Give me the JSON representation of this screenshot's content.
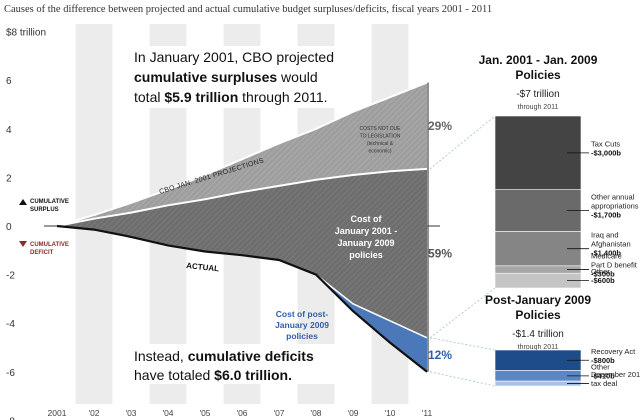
{
  "chart_data": {
    "type": "area",
    "title": "Causes of the difference between projected and actual cumulative budget surpluses/deficits, fiscal years 2001 - 2011",
    "x": [
      "2001",
      "'02",
      "'03",
      "'04",
      "'05",
      "'06",
      "'07",
      "'08",
      "'09",
      "'10",
      "'11"
    ],
    "y_ticks": [
      "$8 trillion",
      "6",
      "4",
      "2",
      "0",
      "-2",
      "-4",
      "-6",
      "-8"
    ],
    "ylim": [
      -8,
      8
    ],
    "series": [
      {
        "name": "CBO JAN. 2001 PROJECTIONS",
        "values": [
          0,
          0.45,
          0.95,
          1.5,
          2.1,
          2.75,
          3.4,
          4.0,
          4.7,
          5.3,
          5.9
        ]
      },
      {
        "name": "Cost of January 2001 - January 2009 policies",
        "values": [
          0,
          0.3,
          0.55,
          0.85,
          1.1,
          1.4,
          1.65,
          1.9,
          2.1,
          2.25,
          2.35
        ]
      },
      {
        "name": "Cost of post-January 2009 policies",
        "values": [
          null,
          null,
          null,
          null,
          null,
          null,
          null,
          -2.0,
          -3.2,
          -3.9,
          -4.6
        ]
      },
      {
        "name": "ACTUAL",
        "values": [
          0,
          -0.15,
          -0.45,
          -0.8,
          -1.05,
          -1.2,
          -1.4,
          -2.0,
          -3.5,
          -4.8,
          -6.0
        ]
      }
    ],
    "share_labels": [
      "29%",
      "59%",
      "12%"
    ],
    "annotations": {
      "projected_prefix": "In January 2001, CBO projected",
      "projected_bold": "cumulative surpluses",
      "projected_suffix": "would",
      "projected_line3": "total",
      "projected_amount": "$5.9 trillion",
      "projected_end": "through 2011.",
      "actual_prefix": "Instead,",
      "actual_bold": "cumulative deficits",
      "actual_line2": "have totaled",
      "actual_amount": "$6.0 trillion.",
      "cbo_label": "CBO JAN. 2001 PROJECTIONS",
      "actual_label": "ACTUAL",
      "cost_0109": [
        "Cost of",
        "January 2001 -",
        "January 2009",
        "policies"
      ],
      "cost_post09": [
        "Cost of post-",
        "January 2009",
        "policies"
      ],
      "not_legislation": [
        "COSTS NOT DUE",
        "TO LEGISLATION",
        "(technical &",
        "economic)"
      ],
      "legend_surplus": [
        "CUMULATIVE",
        "SURPLUS"
      ],
      "legend_deficit": [
        "CUMULATIVE",
        "DEFICIT"
      ]
    },
    "panel_a": {
      "title": [
        "Jan. 2001 - Jan. 2009",
        "Policies"
      ],
      "total": "-$7 trillion",
      "through": "through 2011",
      "items": [
        {
          "label": [
            "Tax Cuts"
          ],
          "value": "-$3,000b",
          "amount": 3000,
          "color": "#444444"
        },
        {
          "label": [
            "Other annual",
            "appropriations"
          ],
          "value": "-$1,700b",
          "amount": 1700,
          "color": "#6a6a6a"
        },
        {
          "label": [
            "Iraq and",
            "Afghanistan"
          ],
          "value": "-$1,400b",
          "amount": 1400,
          "color": "#858585"
        },
        {
          "label": [
            "Medicare",
            "Part D benefit"
          ],
          "value": "-$300b",
          "amount": 300,
          "color": "#a6a6a6"
        },
        {
          "label": [
            "Other"
          ],
          "value": "-$600b",
          "amount": 600,
          "color": "#c4c4c4"
        }
      ]
    },
    "panel_b": {
      "title": [
        "Post-January 2009",
        "Policies"
      ],
      "total": "-$1.4 trillion",
      "through": "through 2011",
      "items": [
        {
          "label": [
            "Recovery Act"
          ],
          "value": "-$800b",
          "amount": 800,
          "color": "#1e4b8a"
        },
        {
          "label": [
            "Other"
          ],
          "value": "-$410b",
          "amount": 410,
          "color": "#5b86c6"
        },
        {
          "label": [
            "December 2010",
            "tax deal"
          ],
          "value": "",
          "amount": 190,
          "color": "#a7c1e6"
        }
      ]
    },
    "colors": {
      "surplus_gap": "#9e9e9e",
      "policy_gap": "#6e6e6e",
      "post09": "#4a78b8",
      "label_blue": "#2f5fa6",
      "deficit_red": "#8b2a2a",
      "stripe": "#ececec"
    }
  }
}
